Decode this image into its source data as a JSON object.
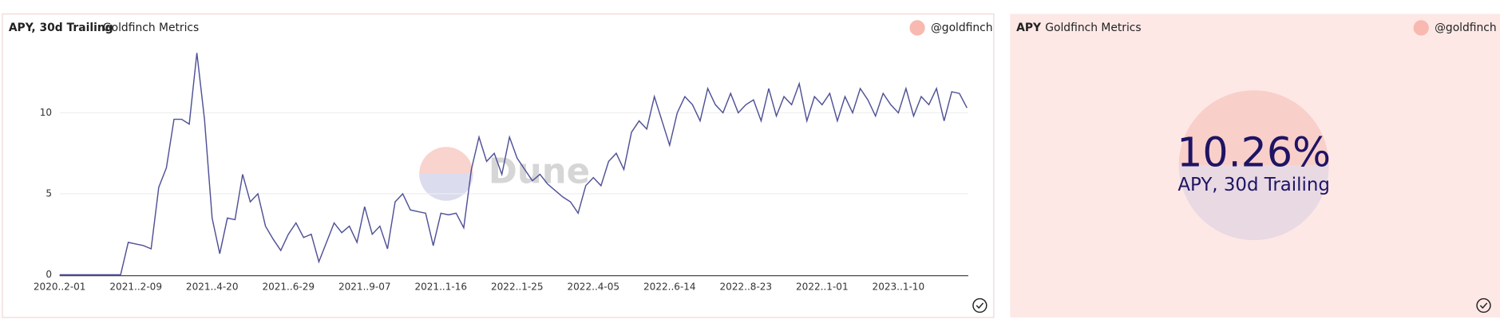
{
  "chart_data": [
    {
      "type": "line",
      "title": "APY, 30d Trailing",
      "subtitle": "Goldfinch Metrics",
      "author": "@goldfinch",
      "watermark": "Dune",
      "xticks": [
        "2020..2-01",
        "2021..2-09",
        "2021..4-20",
        "2021..6-29",
        "2021..9-07",
        "2021..1-16",
        "2022..1-25",
        "2022..4-05",
        "2022..6-14",
        "2022..8-23",
        "2022..1-01",
        "2023..1-10"
      ],
      "series": [
        {
          "name": "APY, 30d Trailing",
          "color": "#4f5196",
          "values": [
            0,
            0,
            0,
            0,
            0,
            0,
            0,
            0,
            0,
            2.0,
            1.9,
            1.8,
            1.6,
            5.4,
            6.6,
            9.6,
            9.6,
            9.3,
            13.7,
            9.6,
            3.5,
            1.3,
            3.5,
            3.4,
            6.2,
            4.5,
            5.0,
            3.0,
            2.2,
            1.5,
            2.5,
            3.2,
            2.3,
            2.5,
            0.8,
            2.0,
            3.2,
            2.6,
            3.0,
            2.0,
            4.2,
            2.5,
            3.0,
            1.6,
            4.5,
            5.0,
            4.0,
            3.9,
            3.8,
            1.8,
            3.8,
            3.7,
            3.8,
            2.9,
            6.5,
            8.5,
            7.0,
            7.5,
            6.2,
            8.5,
            7.2,
            6.5,
            5.8,
            6.2,
            5.6,
            5.2,
            4.8,
            4.5,
            3.8,
            5.5,
            6.0,
            5.5,
            7.0,
            7.5,
            6.5,
            8.8,
            9.5,
            9.0,
            11.0,
            9.5,
            8.0,
            10.0,
            11.0,
            10.5,
            9.5,
            11.5,
            10.5,
            10.0,
            11.2,
            10.0,
            10.5,
            10.8,
            9.5,
            11.5,
            9.8,
            11.0,
            10.5,
            11.8,
            9.5,
            11.0,
            10.5,
            11.2,
            9.5,
            11.0,
            10.0,
            11.5,
            10.8,
            9.8,
            11.2,
            10.5,
            10.0,
            11.5,
            9.8,
            11.0,
            10.5,
            11.5,
            9.5,
            11.3,
            11.2,
            10.3
          ]
        }
      ],
      "ylim": [
        0,
        14
      ],
      "yticks": [
        0,
        5,
        10
      ],
      "grid": true
    },
    {
      "type": "counter",
      "title": "APY",
      "subtitle": "Goldfinch Metrics",
      "author": "@goldfinch",
      "value": 10.26,
      "value_label": "10.26%",
      "label": "APY, 30d Trailing",
      "color": "#1e1464",
      "background": "#fde8e6"
    }
  ]
}
